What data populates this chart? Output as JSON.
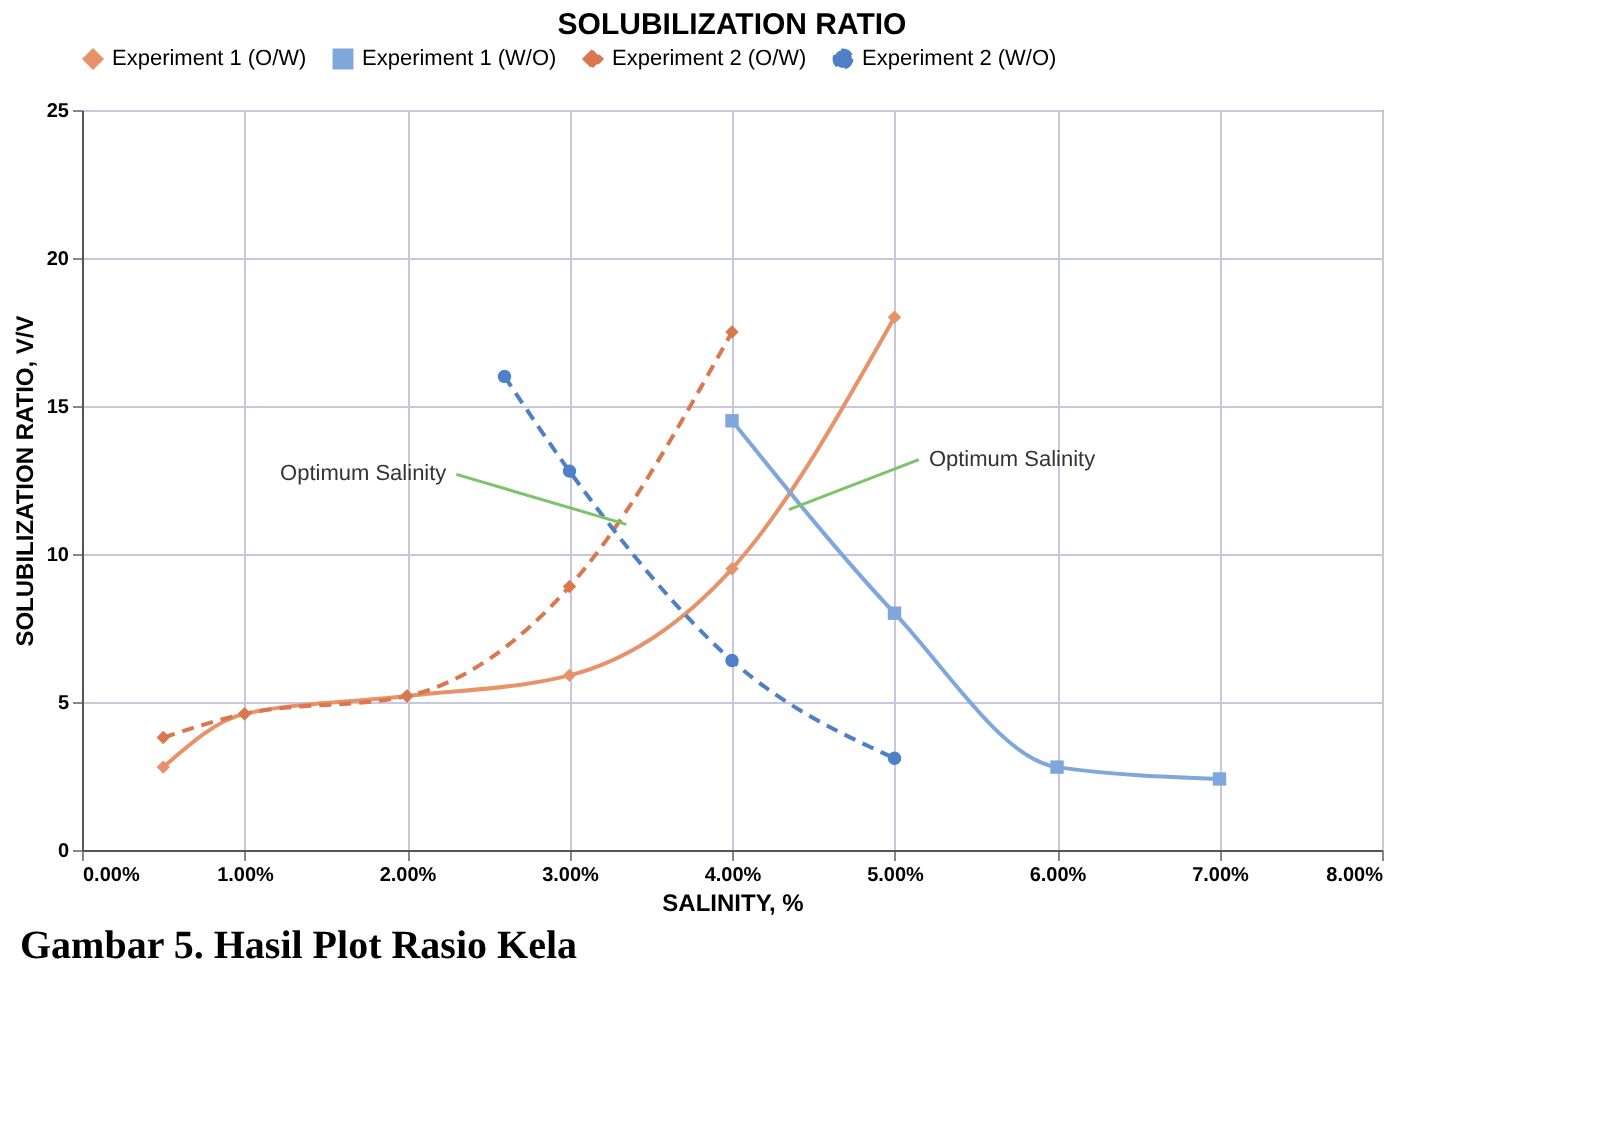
{
  "chart_data": {
    "type": "line",
    "title": "SOLUBILIZATION RATIO",
    "xlabel": "SALINITY, %",
    "ylabel": "SOLUBILIZATION RATIO, V/V",
    "xlim": [
      0,
      8
    ],
    "xticks": [
      {
        "value": 0,
        "label": "0.00%"
      },
      {
        "value": 1,
        "label": "1.00%"
      },
      {
        "value": 2,
        "label": "2.00%"
      },
      {
        "value": 3,
        "label": "3.00%"
      },
      {
        "value": 4,
        "label": "4.00%"
      },
      {
        "value": 5,
        "label": "5.00%"
      },
      {
        "value": 6,
        "label": "6.00%"
      },
      {
        "value": 7,
        "label": "7.00%"
      },
      {
        "value": 8,
        "label": "8.00%"
      }
    ],
    "ylim": [
      0,
      25
    ],
    "yticks": [
      0,
      5,
      10,
      15,
      20,
      25
    ],
    "grid": true,
    "legend": "top",
    "series": [
      {
        "name": "Experiment 1 (O/W)",
        "color": "#e8926a",
        "marker": "diamond",
        "line_style": "solid",
        "x": [
          0.5,
          1,
          2,
          3,
          4,
          5
        ],
        "values": [
          2.8,
          4.6,
          5.2,
          5.9,
          9.5,
          18
        ]
      },
      {
        "name": "Experiment 1 (W/O)",
        "color": "#7fa7db",
        "marker": "square",
        "line_style": "solid",
        "x": [
          4,
          5,
          6,
          7
        ],
        "values": [
          14.5,
          8,
          2.8,
          2.4
        ]
      },
      {
        "name": "Experiment 2 (O/W)",
        "color": "#d9774e",
        "marker": "diamond",
        "line_style": "dashed",
        "x": [
          0.5,
          1,
          2,
          3,
          4
        ],
        "values": [
          3.8,
          4.6,
          5.2,
          8.9,
          17.5
        ]
      },
      {
        "name": "Experiment 2 (W/O)",
        "color": "#4f7fc4",
        "marker": "circle",
        "line_style": "dashed",
        "x": [
          2.6,
          3,
          4,
          5
        ],
        "values": [
          16,
          12.8,
          6.4,
          3.1
        ]
      }
    ],
    "annotations": [
      {
        "text": "Optimum Salinity",
        "x": 3.35,
        "y": 11
      },
      {
        "text": "Optimum Salinity",
        "x": 4.35,
        "y": 11.5
      },
      "Gambar 5. Hasil Plot Rasio Kela"
    ]
  }
}
